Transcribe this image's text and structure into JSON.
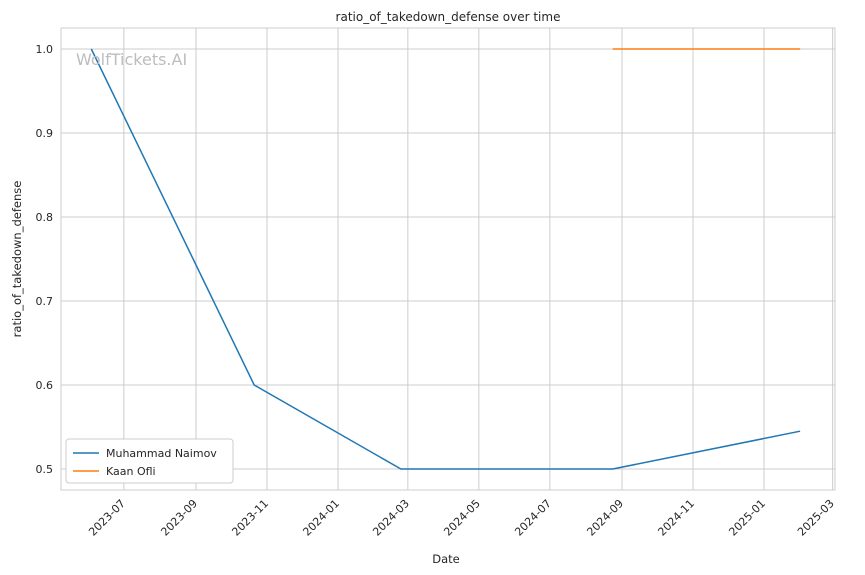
{
  "chart_data": {
    "type": "line",
    "title": "ratio_of_takedown_defense over time",
    "xlabel": "Date",
    "ylabel": "ratio_of_takedown_defense",
    "watermark": "WolfTickets.AI",
    "xlim": [
      "2023-05-08",
      "2025-03-03"
    ],
    "ylim": [
      0.475,
      1.025
    ],
    "x_ticks": [
      "2023-07",
      "2023-09",
      "2023-11",
      "2024-01",
      "2024-03",
      "2024-05",
      "2024-07",
      "2024-09",
      "2024-11",
      "2025-01",
      "2025-03"
    ],
    "y_ticks": [
      "0.5",
      "0.6",
      "0.7",
      "0.8",
      "0.9",
      "1.0"
    ],
    "grid": true,
    "legend_position": "lower-left",
    "series": [
      {
        "name": "Muhammad Naimov",
        "color": "#1f77b4",
        "points": [
          {
            "x": "2023-06-03",
            "y": 1.0
          },
          {
            "x": "2023-10-21",
            "y": 0.6
          },
          {
            "x": "2024-02-24",
            "y": 0.5
          },
          {
            "x": "2024-08-24",
            "y": 0.5
          },
          {
            "x": "2025-02-01",
            "y": 0.545
          }
        ]
      },
      {
        "name": "Kaan Ofli",
        "color": "#ff7f0e",
        "points": [
          {
            "x": "2024-08-24",
            "y": 1.0
          },
          {
            "x": "2025-02-01",
            "y": 1.0
          }
        ]
      }
    ]
  }
}
